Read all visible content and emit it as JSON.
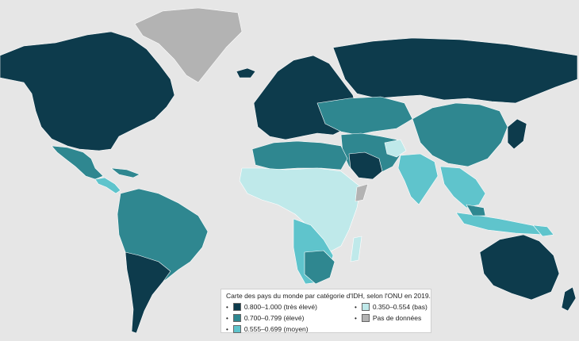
{
  "legend": {
    "title": "Carte des pays du monde par catégorie d'IDH, selon l'ONU en 2019.",
    "items": [
      {
        "label": "0.800–1.000 (très élevé)",
        "color": "#0d3b4c"
      },
      {
        "label": "0.700–0.799 (élevé)",
        "color": "#2f8790"
      },
      {
        "label": "0.555–0.699 (moyen)",
        "color": "#5fc4cc"
      },
      {
        "label": "0.350–0.554 (bas)",
        "color": "#bfe9ea"
      },
      {
        "label": "Pas de données",
        "color": "#b3b3b3"
      }
    ]
  },
  "colors": {
    "ocean": "#e6e6e6",
    "very_high": "#0d3b4c",
    "high": "#2f8790",
    "medium": "#5fc4cc",
    "low": "#bfe9ea",
    "no_data": "#b3b3b3"
  }
}
